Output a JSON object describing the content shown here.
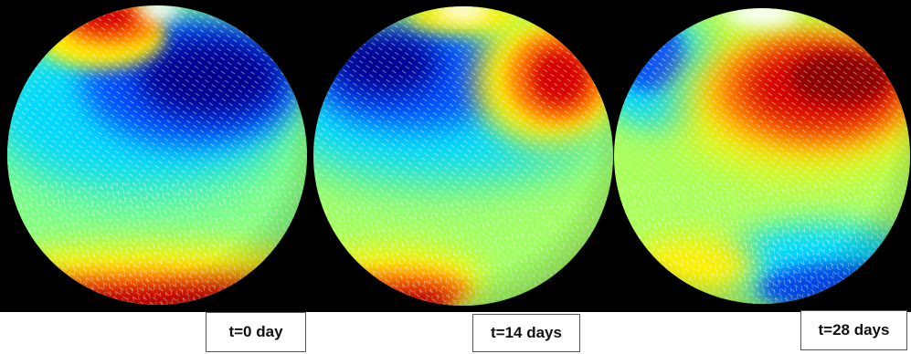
{
  "panels": [
    {
      "id": "t0",
      "label": "t=0 day",
      "sphere_colormap": "jet",
      "dominant_features": [
        "dark-blue-upper-right",
        "red-north-pole-left",
        "red-south-band"
      ]
    },
    {
      "id": "t14",
      "label": "t=14 days",
      "sphere_colormap": "jet",
      "dominant_features": [
        "dark-blue-upper-left",
        "red-upper-right",
        "red-lower-left"
      ]
    },
    {
      "id": "t28",
      "label": "t=28 days",
      "sphere_colormap": "jet",
      "dominant_features": [
        "dark-red-upper-right",
        "blue-upper-left",
        "blue-lower-right"
      ]
    }
  ],
  "colors": {
    "background": "#000000",
    "label_border": "#555555",
    "jet_dark_blue": "#00008f",
    "jet_blue": "#0050ff",
    "jet_cyan": "#00d8ff",
    "jet_green": "#80ff80",
    "jet_yellow": "#ffee00",
    "jet_orange": "#ff7700",
    "jet_red": "#d40000",
    "jet_dark_red": "#8a0000"
  }
}
